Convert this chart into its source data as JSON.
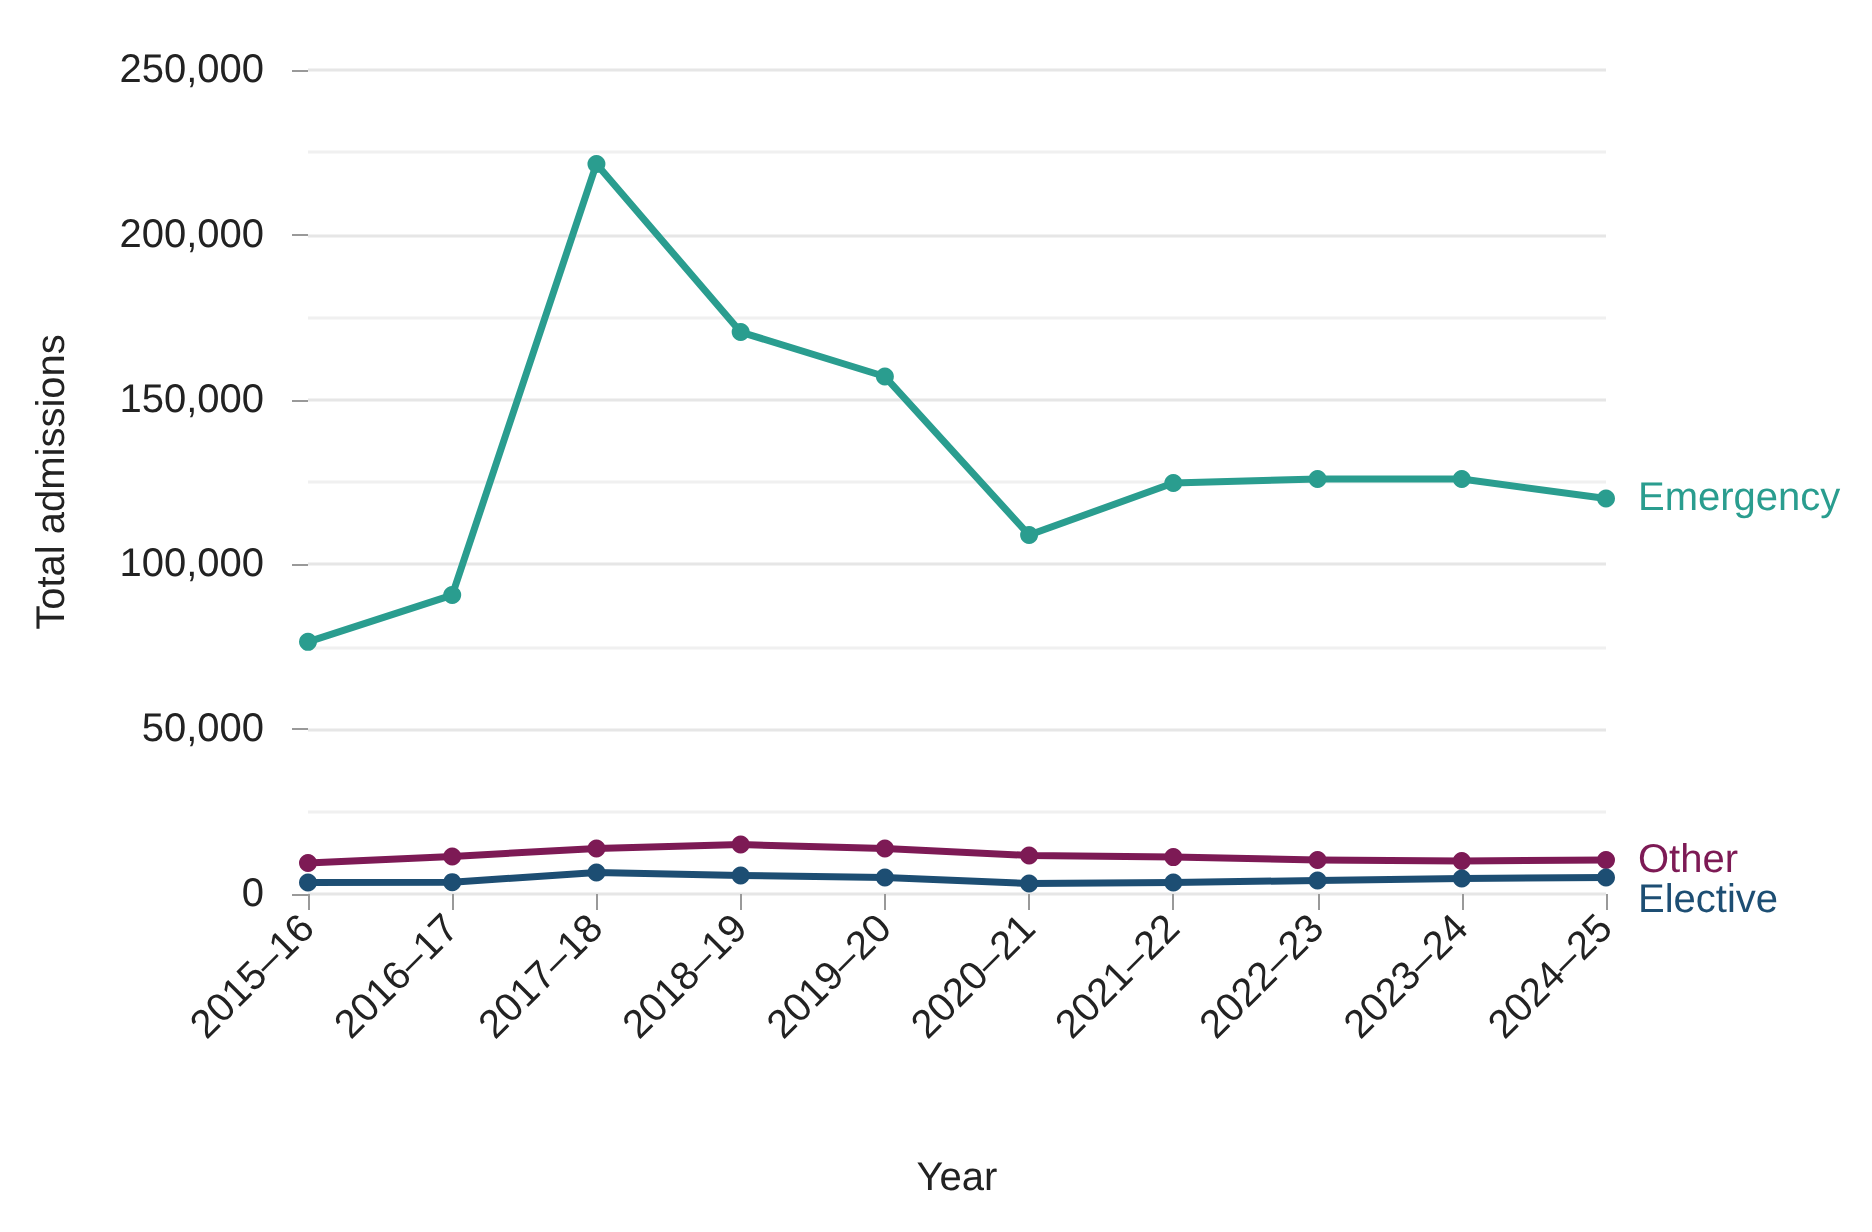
{
  "chart_data": {
    "type": "line",
    "xlabel": "Year",
    "ylabel": "Total admissions",
    "categories": [
      "2015–16",
      "2016–17",
      "2017–18",
      "2018–19",
      "2019–20",
      "2020–21",
      "2021–22",
      "2022–23",
      "2023–24",
      "2024–25"
    ],
    "series": [
      {
        "name": "Emergency",
        "color": "#2a9d8f",
        "values": [
          76500,
          90700,
          221500,
          170500,
          157000,
          108900,
          124700,
          125900,
          125900,
          120000
        ]
      },
      {
        "name": "Other",
        "color": "#7d1a55",
        "values": [
          9400,
          11400,
          13800,
          15000,
          13800,
          11700,
          11200,
          10300,
          10000,
          10300
        ]
      },
      {
        "name": "Elective",
        "color": "#1d4e73",
        "values": [
          3500,
          3600,
          6500,
          5600,
          5000,
          3200,
          3500,
          4100,
          4700,
          5000
        ]
      }
    ],
    "ylim": [
      0,
      250000
    ],
    "yticks": [
      0,
      {
        "value": 50000,
        "label": "50,000"
      },
      {
        "value": 100000,
        "label": "100,000"
      },
      {
        "value": 150000,
        "label": "150,000"
      },
      {
        "value": 200000,
        "label": "200,000"
      },
      {
        "value": 250000,
        "label": "250,000"
      }
    ],
    "grid": "y",
    "legend": false,
    "marker": "circle",
    "line_style": "solid"
  }
}
